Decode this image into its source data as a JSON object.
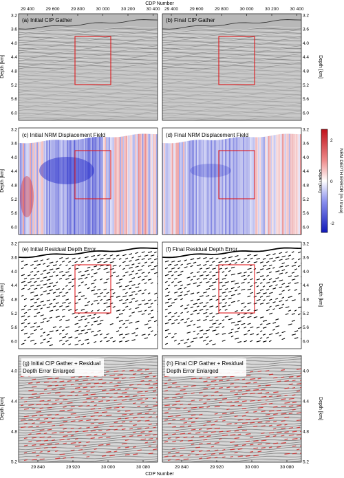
{
  "figure": {
    "top_axis_title": "CDP Number",
    "bottom_axis_title": "CDP Number",
    "depth_axis_title": "Depth [km]",
    "colorbar_title": "NRM DEPTH ERROR [m / trace]",
    "colorbar_ticks": [
      "2",
      "0",
      "-2"
    ],
    "top_x_ticks": [
      "29 400",
      "29 600",
      "29 800",
      "30 000",
      "30 200",
      "30 400"
    ],
    "depth_ticks_rows123": [
      "3.2",
      "3.6",
      "4.0",
      "4.4",
      "4.8",
      "5.2",
      "5.6",
      "6.0"
    ],
    "depth_ticks_row4": [
      "4.0",
      "4.4",
      "4.8",
      "5.2"
    ],
    "bottom_x_ticks": [
      "29 840",
      "29 920",
      "30 000",
      "30 080"
    ]
  },
  "panels": [
    {
      "id": "a",
      "title": "(a) Initial CIP Gather",
      "type": "seismic"
    },
    {
      "id": "b",
      "title": "(b) Final CIP Gather",
      "type": "seismic"
    },
    {
      "id": "c",
      "title": "(c) Initial NRM Displacement Field",
      "type": "nrm"
    },
    {
      "id": "d",
      "title": "(d) Final NRM Displacement Field",
      "type": "nrm"
    },
    {
      "id": "e",
      "title": "(e) Initial Residual Depth Error",
      "type": "residual"
    },
    {
      "id": "f",
      "title": "(f) Final Residual Depth Error",
      "type": "residual"
    },
    {
      "id": "g",
      "title_line1": "(g) Initial CIP Gather + Residual",
      "title_line2": "Depth Error Enlarged",
      "type": "enlarged"
    },
    {
      "id": "h",
      "title_line1": "(h) Final CIP Gather + Residual",
      "title_line2": "Depth Error Enlarged",
      "type": "enlarged"
    }
  ],
  "colors": {
    "box": "#e0191d",
    "nrm_positive": "#d0141a",
    "nrm_negative": "#1a22c8",
    "residual_marks": "#000000",
    "enlarged_marks": "#d42a2a",
    "seismic_bg": "#bdbdbd"
  }
}
